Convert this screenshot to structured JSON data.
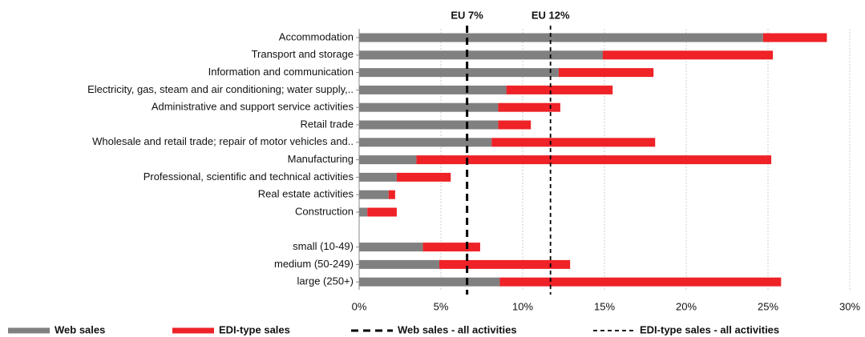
{
  "chart_data": {
    "type": "stacked_bar_horizontal",
    "categories": [
      "Accommodation",
      "Transport and storage",
      "Information and communication",
      "Electricity, gas, steam and air conditioning; water supply,..",
      "Administrative and support service activities",
      "Retail trade",
      "Wholesale and retail trade; repair of motor vehicles and..",
      "Manufacturing",
      "Professional, scientific and technical activities",
      "Real estate activities",
      "Construction",
      null,
      "small (10-49)",
      "medium (50-249)",
      "large (250+)"
    ],
    "series": [
      {
        "name": "Web sales",
        "color": "#808080",
        "values": [
          24.7,
          14.9,
          12.2,
          9.0,
          8.5,
          8.5,
          8.1,
          3.5,
          2.3,
          1.8,
          0.5,
          null,
          3.9,
          4.9,
          8.6
        ]
      },
      {
        "name": "EDI-type sales",
        "color": "#ee2227",
        "values": [
          3.9,
          10.4,
          5.8,
          6.5,
          3.8,
          2.0,
          10.0,
          21.7,
          3.3,
          0.4,
          1.8,
          null,
          3.5,
          8.0,
          17.2
        ]
      }
    ],
    "reference_lines": [
      {
        "name": "Web sales - all activities",
        "label": "EU 7%",
        "value": 6.6,
        "color": "#000000"
      },
      {
        "name": "EDI-type sales  - all activities",
        "label": "EU 12%",
        "value": 11.7,
        "color": "#000000"
      }
    ],
    "xlim": [
      0,
      30
    ],
    "xticks": [
      {
        "value": 0,
        "label": "0%"
      },
      {
        "value": 5,
        "label": "5%"
      },
      {
        "value": 10,
        "label": "10%"
      },
      {
        "value": 15,
        "label": "15%"
      },
      {
        "value": 20,
        "label": "20%"
      },
      {
        "value": 25,
        "label": "25%"
      },
      {
        "value": 30,
        "label": "30%"
      }
    ],
    "grid": true,
    "legend": "bottom"
  }
}
